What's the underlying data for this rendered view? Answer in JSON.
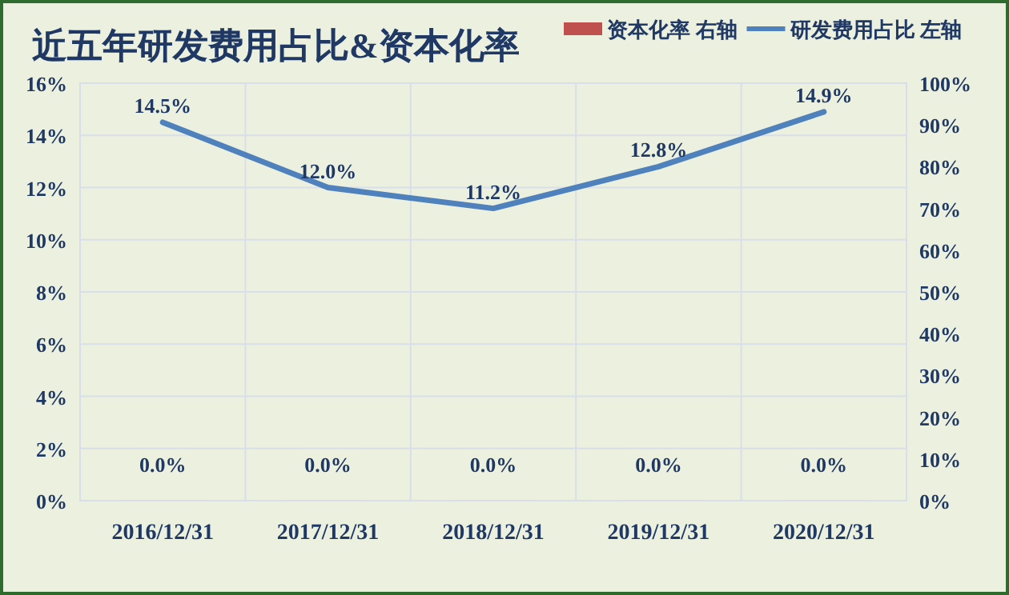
{
  "chart_data": {
    "type": "bar",
    "title": "近五年研发费用占比&资本化率",
    "categories": [
      "2016/12/31",
      "2017/12/31",
      "2018/12/31",
      "2019/12/31",
      "2020/12/31"
    ],
    "series": [
      {
        "name": "资本化率 右轴",
        "color": "#c0504d",
        "values": [
          0,
          0,
          0,
          0,
          0
        ],
        "value_labels": [
          "0.0%",
          "0.0%",
          "0.0%",
          "0.0%",
          "0.0%"
        ]
      },
      {
        "name": "研发费用占比 左轴",
        "type": "line",
        "color": "#4f81bd",
        "values": [
          14.5,
          12.0,
          11.2,
          12.8,
          14.9
        ],
        "value_labels": [
          "14.5%",
          "12.0%",
          "11.2%",
          "12.8%",
          "14.9%"
        ]
      }
    ],
    "ylim": [
      0,
      16
    ],
    "yticks": [
      {
        "value": 0,
        "label": "0%"
      },
      {
        "value": 2,
        "label": "2%"
      },
      {
        "value": 4,
        "label": "4%"
      },
      {
        "value": 6,
        "label": "6%"
      },
      {
        "value": 8,
        "label": "8%"
      },
      {
        "value": 10,
        "label": "10%"
      },
      {
        "value": 12,
        "label": "12%"
      },
      {
        "value": 14,
        "label": "14%"
      },
      {
        "value": 16,
        "label": "16%"
      }
    ],
    "y2lim": [
      0,
      100
    ],
    "y2ticks": [
      {
        "value": 0,
        "label": "0%"
      },
      {
        "value": 10,
        "label": "10%"
      },
      {
        "value": 20,
        "label": "20%"
      },
      {
        "value": 30,
        "label": "30%"
      },
      {
        "value": 40,
        "label": "40%"
      },
      {
        "value": 50,
        "label": "50%"
      },
      {
        "value": 60,
        "label": "60%"
      },
      {
        "value": 70,
        "label": "70%"
      },
      {
        "value": 80,
        "label": "80%"
      },
      {
        "value": 90,
        "label": "90%"
      },
      {
        "value": 100,
        "label": "100%"
      }
    ],
    "grid": true,
    "legend": "top right"
  }
}
